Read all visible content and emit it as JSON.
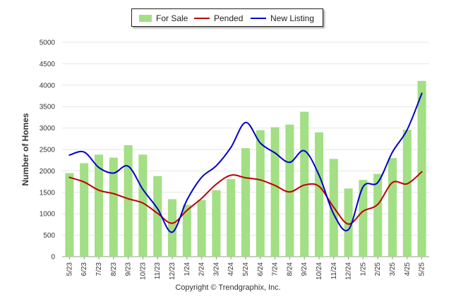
{
  "chart_data": {
    "type": "bar",
    "categories": [
      "5/23",
      "6/23",
      "7/23",
      "8/23",
      "9/23",
      "10/23",
      "11/23",
      "12/23",
      "1/24",
      "2/24",
      "3/24",
      "4/24",
      "5/24",
      "6/24",
      "7/24",
      "8/24",
      "9/24",
      "10/24",
      "11/24",
      "12/24",
      "1/25",
      "2/25",
      "3/25",
      "4/25",
      "5/25"
    ],
    "series": [
      {
        "name": "For Sale",
        "type": "bar",
        "color": "#a3df84",
        "values": [
          1950,
          2180,
          2380,
          2310,
          2600,
          2380,
          1880,
          1340,
          1210,
          1320,
          1550,
          1810,
          2530,
          2950,
          3020,
          3080,
          3380,
          2900,
          2280,
          1590,
          1790,
          1930,
          2300,
          2960,
          4100
        ]
      },
      {
        "name": "Pended",
        "type": "line",
        "color": "#c00000",
        "values": [
          1850,
          1740,
          1550,
          1470,
          1350,
          1250,
          1010,
          780,
          1080,
          1360,
          1690,
          1900,
          1840,
          1790,
          1660,
          1510,
          1670,
          1640,
          1150,
          760,
          1060,
          1220,
          1730,
          1700,
          1980
        ]
      },
      {
        "name": "New Listing",
        "type": "line",
        "color": "#0000cc",
        "values": [
          2370,
          2440,
          2080,
          1950,
          2110,
          1570,
          1120,
          570,
          1320,
          1850,
          2120,
          2550,
          3130,
          2650,
          2420,
          2200,
          2470,
          1900,
          990,
          630,
          1630,
          1730,
          2440,
          2960,
          3810
        ]
      }
    ],
    "title": "",
    "xlabel": "",
    "ylabel": "Number of Homes",
    "ylim": [
      0,
      5000
    ],
    "yticks": [
      0,
      500,
      1000,
      1500,
      2000,
      2500,
      3000,
      3500,
      4000,
      4500,
      5000
    ],
    "grid": true,
    "legend": "top-center"
  },
  "legend": {
    "for_sale": "For Sale",
    "pended": "Pended",
    "new_listing": "New Listing"
  },
  "copyright": "Copyright © Trendgraphix, Inc."
}
